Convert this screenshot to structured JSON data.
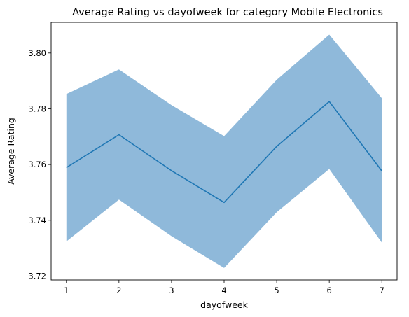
{
  "chart_data": {
    "type": "line",
    "title": "Average Rating vs dayofweek for category Mobile Electronics",
    "xlabel": "dayofweek",
    "ylabel": "Average Rating",
    "x": [
      1,
      2,
      3,
      4,
      5,
      6,
      7
    ],
    "xticks": [
      "1",
      "2",
      "3",
      "4",
      "5",
      "6",
      "7"
    ],
    "xlim": [
      0.71,
      7.29
    ],
    "yticks": [
      "3.72",
      "3.74",
      "3.76",
      "3.78",
      "3.80"
    ],
    "ytick_values": [
      3.72,
      3.74,
      3.76,
      3.78,
      3.8
    ],
    "ylim": [
      3.7186,
      3.811
    ],
    "grid": false,
    "series": [
      {
        "values": [
          3.7589,
          3.7707,
          3.7578,
          3.7464,
          3.7665,
          3.7826,
          3.7577
        ],
        "ci_lower": [
          3.7324,
          3.7474,
          3.7343,
          3.7229,
          3.7429,
          3.7584,
          3.732
        ],
        "ci_upper": [
          3.7853,
          3.7941,
          3.7813,
          3.7702,
          3.7904,
          3.8066,
          3.7838
        ],
        "color": "#1f77b4",
        "band_color": "#8fb9da"
      }
    ]
  }
}
